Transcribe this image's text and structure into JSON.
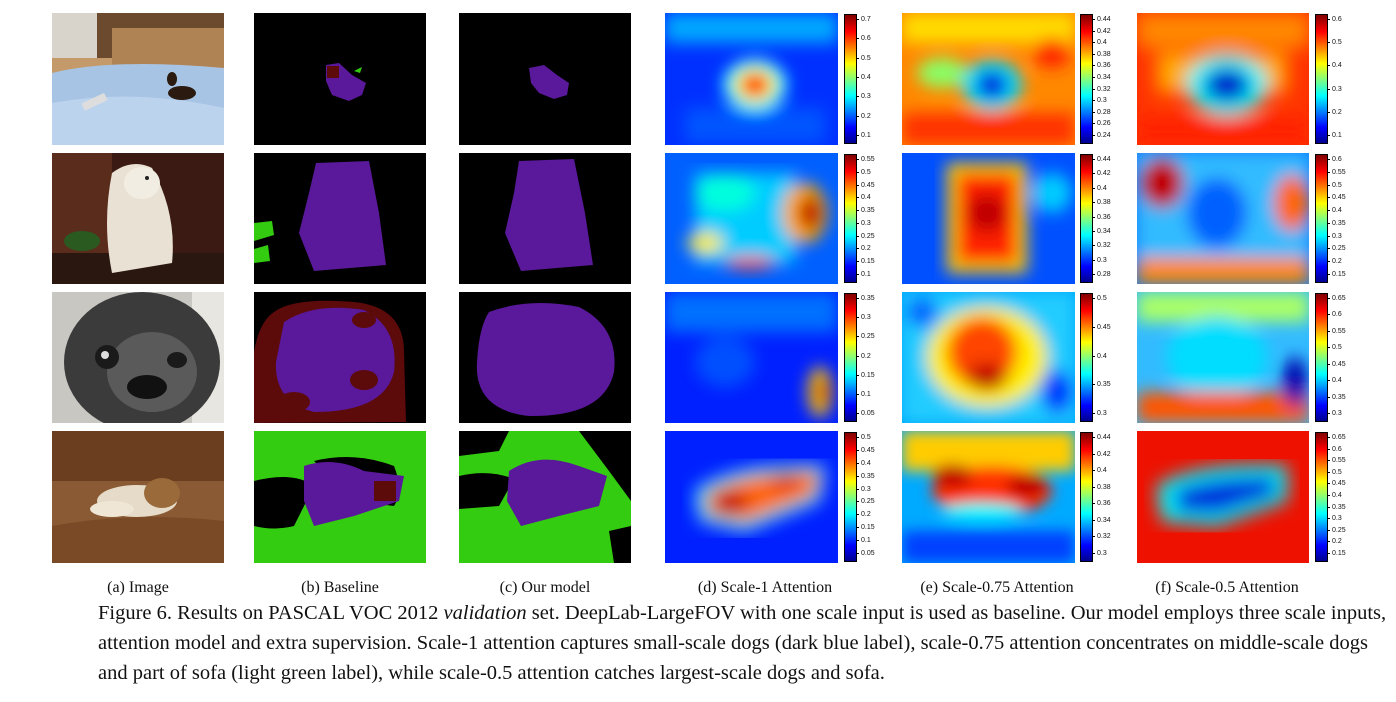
{
  "columns": [
    {
      "label": "(a) Image"
    },
    {
      "label": "(b) Baseline"
    },
    {
      "label": "(c) Our model"
    },
    {
      "label": "(d) Scale-1 Attention"
    },
    {
      "label": "(e) Scale-0.75 Attention"
    },
    {
      "label": "(f) Scale-0.5 Attention"
    }
  ],
  "colorbars": [
    [
      [
        "0.7",
        "0.6",
        "0.5",
        "0.4",
        "0.3",
        "0.2",
        "0.1"
      ],
      [
        "0.44",
        "0.42",
        "0.4",
        "0.38",
        "0.36",
        "0.34",
        "0.32",
        "0.3",
        "0.28",
        "0.26",
        "0.24"
      ],
      [
        "0.6",
        "0.5",
        "0.4",
        "0.3",
        "0.2",
        "0.1"
      ]
    ],
    [
      [
        "0.55",
        "0.5",
        "0.45",
        "0.4",
        "0.35",
        "0.3",
        "0.25",
        "0.2",
        "0.15",
        "0.1"
      ],
      [
        "0.44",
        "0.42",
        "0.4",
        "0.38",
        "0.36",
        "0.34",
        "0.32",
        "0.3",
        "0.28"
      ],
      [
        "0.6",
        "0.55",
        "0.5",
        "0.45",
        "0.4",
        "0.35",
        "0.3",
        "0.25",
        "0.2",
        "0.15"
      ]
    ],
    [
      [
        "0.35",
        "0.3",
        "0.25",
        "0.2",
        "0.15",
        "0.1",
        "0.05"
      ],
      [
        "0.5",
        "0.45",
        "0.4",
        "0.35",
        "0.3"
      ],
      [
        "0.65",
        "0.6",
        "0.55",
        "0.5",
        "0.45",
        "0.4",
        "0.35",
        "0.3"
      ]
    ],
    [
      [
        "0.5",
        "0.45",
        "0.4",
        "0.35",
        "0.3",
        "0.25",
        "0.2",
        "0.15",
        "0.1",
        "0.05"
      ],
      [
        "0.44",
        "0.42",
        "0.4",
        "0.38",
        "0.36",
        "0.34",
        "0.32",
        "0.3"
      ],
      [
        "0.65",
        "0.6",
        "0.55",
        "0.5",
        "0.45",
        "0.4",
        "0.35",
        "0.3",
        "0.25",
        "0.2",
        "0.15"
      ]
    ]
  ],
  "caption": {
    "prefix": "Figure 6. Results on PASCAL VOC 2012 ",
    "italic": "validation",
    "rest": " set. DeepLab-LargeFOV with one scale input is used as baseline. Our model employs three scale inputs, attention model and extra supervision. Scale-1 attention captures small-scale dogs (dark blue label), scale-0.75 attention concentrates on middle-scale dogs and part of sofa (light green label), while scale-0.5 attention catches largest-scale dogs and sofa."
  },
  "colors": {
    "dog_label": "#5a189a",
    "sofa_label": "#33cc10",
    "other_label": "#5c0a0a",
    "background_label": "#000000"
  }
}
